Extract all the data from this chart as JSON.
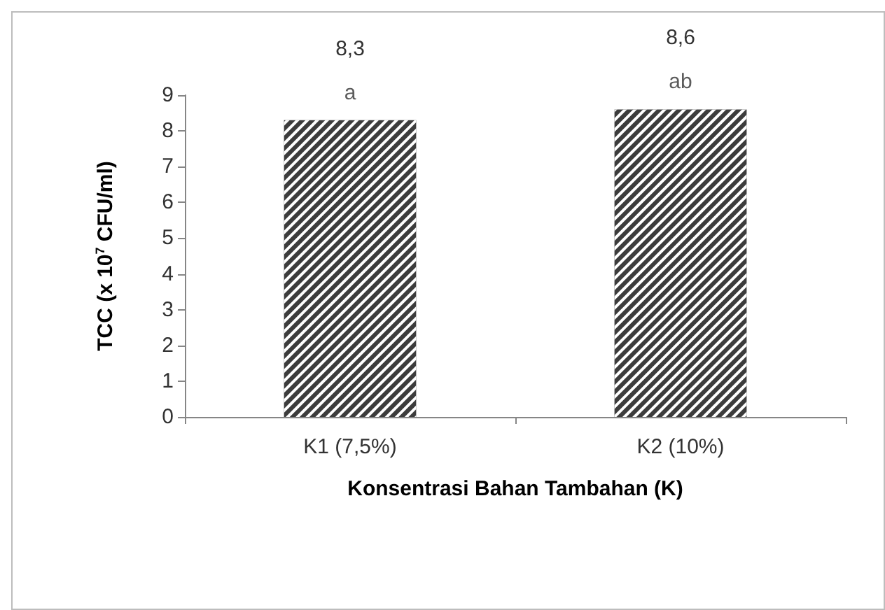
{
  "chart_data": {
    "type": "bar",
    "xlabel": "Konsentrasi Bahan Tambahan (K)",
    "ylabel": "TCC (x 10$^{7}$ CFU/ml)",
    "categories": [
      "K1 (7,5%)",
      "K2 (10%)"
    ],
    "values": [
      8.3,
      8.6
    ],
    "value_labels": [
      "8,3",
      "8,6"
    ],
    "color": "#3c3c3c",
    "annotations": [
      {
        "text": "a",
        "x": "K1 (7,5%)",
        "y": 8.3
      },
      {
        "text": "ab",
        "x": "K2 (10%)",
        "y": 8.6
      }
    ],
    "ylim": [
      0,
      9
    ],
    "yticks": [
      0,
      1,
      2,
      3,
      4,
      5,
      6,
      7,
      8,
      9
    ],
    "grid": false
  }
}
